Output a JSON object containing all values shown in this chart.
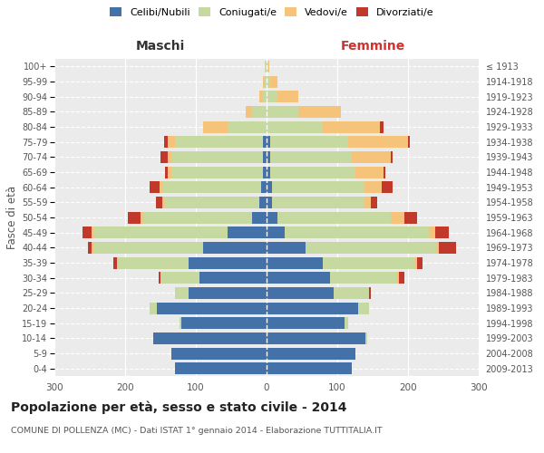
{
  "age_groups": [
    "0-4",
    "5-9",
    "10-14",
    "15-19",
    "20-24",
    "25-29",
    "30-34",
    "35-39",
    "40-44",
    "45-49",
    "50-54",
    "55-59",
    "60-64",
    "65-69",
    "70-74",
    "75-79",
    "80-84",
    "85-89",
    "90-94",
    "95-99",
    "100+"
  ],
  "birth_years": [
    "2009-2013",
    "2004-2008",
    "1999-2003",
    "1994-1998",
    "1989-1993",
    "1984-1988",
    "1979-1983",
    "1974-1978",
    "1969-1973",
    "1964-1968",
    "1959-1963",
    "1954-1958",
    "1949-1953",
    "1944-1948",
    "1939-1943",
    "1934-1938",
    "1929-1933",
    "1924-1928",
    "1919-1923",
    "1914-1918",
    "≤ 1913"
  ],
  "males": {
    "celibe": [
      130,
      135,
      160,
      120,
      155,
      110,
      95,
      110,
      90,
      55,
      20,
      10,
      8,
      5,
      5,
      5,
      0,
      0,
      0,
      0,
      0
    ],
    "coniugato": [
      0,
      0,
      0,
      3,
      10,
      20,
      55,
      100,
      155,
      190,
      155,
      135,
      140,
      130,
      130,
      125,
      55,
      20,
      5,
      3,
      2
    ],
    "vedovo": [
      0,
      0,
      0,
      0,
      0,
      0,
      0,
      2,
      2,
      3,
      3,
      3,
      3,
      5,
      5,
      10,
      35,
      10,
      5,
      2,
      0
    ],
    "divorziato": [
      0,
      0,
      0,
      0,
      0,
      0,
      3,
      5,
      5,
      12,
      18,
      8,
      15,
      3,
      10,
      5,
      0,
      0,
      0,
      0,
      0
    ]
  },
  "females": {
    "nubile": [
      120,
      125,
      140,
      110,
      130,
      95,
      90,
      80,
      55,
      25,
      15,
      8,
      8,
      5,
      5,
      5,
      0,
      0,
      0,
      0,
      0
    ],
    "coniugata": [
      0,
      0,
      2,
      5,
      15,
      50,
      95,
      130,
      185,
      205,
      160,
      130,
      130,
      120,
      115,
      110,
      80,
      45,
      15,
      5,
      2
    ],
    "vedova": [
      0,
      0,
      0,
      0,
      0,
      0,
      2,
      3,
      3,
      8,
      20,
      10,
      25,
      40,
      55,
      85,
      80,
      60,
      30,
      10,
      2
    ],
    "divorziata": [
      0,
      0,
      0,
      0,
      0,
      3,
      8,
      8,
      25,
      20,
      18,
      8,
      15,
      3,
      3,
      3,
      5,
      0,
      0,
      0,
      0
    ]
  },
  "colors": {
    "celibe": "#4472a8",
    "coniugato": "#c5d9a0",
    "vedovo": "#f5c47a",
    "divorziato": "#c0392b"
  },
  "title": "Popolazione per età, sesso e stato civile - 2014",
  "subtitle": "COMUNE DI POLLENZA (MC) - Dati ISTAT 1° gennaio 2014 - Elaborazione TUTTITALIA.IT",
  "xlabel_left": "Maschi",
  "xlabel_right": "Femmine",
  "ylabel_left": "Fasce di età",
  "xlim": 300,
  "background_color": "#ffffff",
  "plot_bg": "#ebebeb",
  "legend_labels": [
    "Celibi/Nubili",
    "Coniugati/e",
    "Vedovi/e",
    "Divorziati/e"
  ]
}
